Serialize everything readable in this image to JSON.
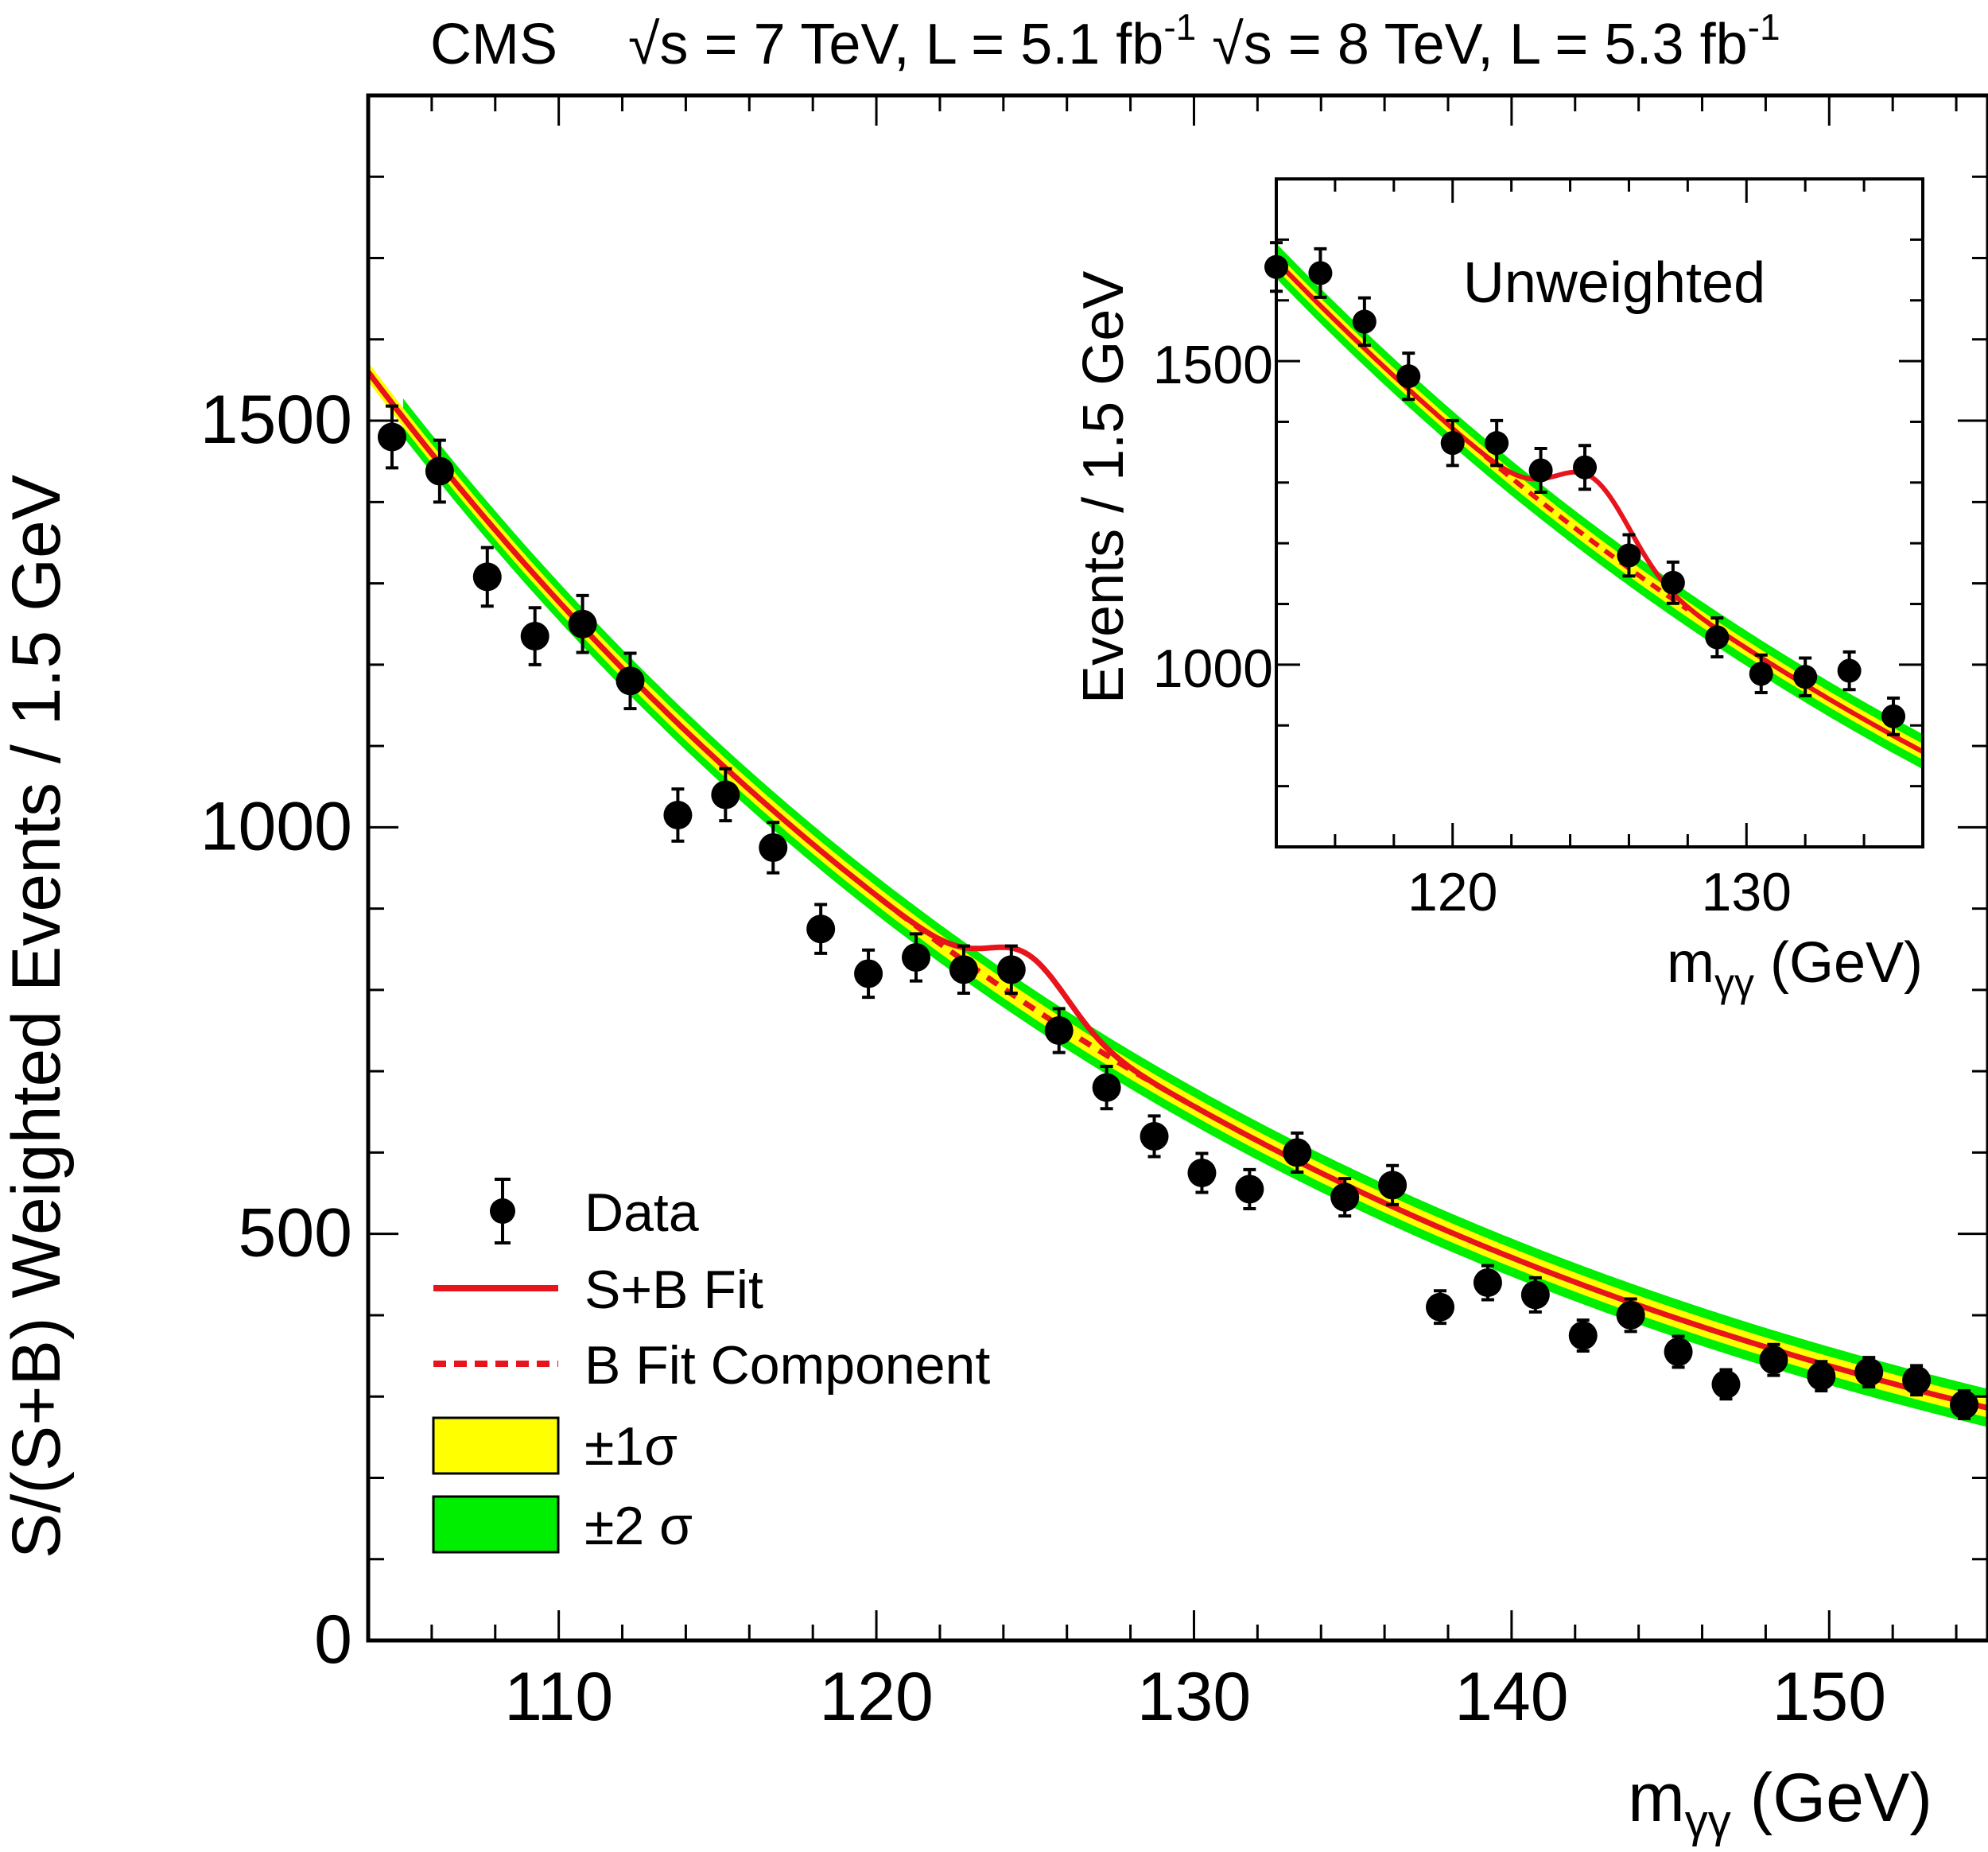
{
  "chart_data": [
    {
      "id": "main",
      "type": "scatter",
      "title": "CMS",
      "subtitle_parts": [
        "√s = 7 TeV, L = 5.1 fb",
        "-1",
        " √s = 8 TeV, L = 5.3 fb",
        "-1"
      ],
      "xlabel": {
        "main": "m",
        "sub": "γγ",
        "unit": " (GeV)"
      },
      "ylabel": "S/(S+B) Weighted Events / 1.5 GeV",
      "xlim": [
        104,
        155
      ],
      "ylim": [
        0,
        1900
      ],
      "x_ticks": [
        110,
        120,
        130,
        140,
        150
      ],
      "y_ticks": [
        0,
        500,
        1000,
        1500
      ],
      "x_minor_step": 2,
      "y_minor_step": 100,
      "series": [
        {
          "name": "Data",
          "type": "scatter-errorbars",
          "points": [
            {
              "x": 104.75,
              "y": 1480,
              "err": 38
            },
            {
              "x": 106.25,
              "y": 1438,
              "err": 38
            },
            {
              "x": 107.75,
              "y": 1308,
              "err": 36
            },
            {
              "x": 109.25,
              "y": 1235,
              "err": 35
            },
            {
              "x": 110.75,
              "y": 1250,
              "err": 35
            },
            {
              "x": 112.25,
              "y": 1180,
              "err": 34
            },
            {
              "x": 113.75,
              "y": 1015,
              "err": 32
            },
            {
              "x": 115.25,
              "y": 1040,
              "err": 32
            },
            {
              "x": 116.75,
              "y": 975,
              "err": 31
            },
            {
              "x": 118.25,
              "y": 875,
              "err": 30
            },
            {
              "x": 119.75,
              "y": 820,
              "err": 29
            },
            {
              "x": 121.25,
              "y": 840,
              "err": 29
            },
            {
              "x": 122.75,
              "y": 825,
              "err": 29
            },
            {
              "x": 124.25,
              "y": 825,
              "err": 29
            },
            {
              "x": 125.75,
              "y": 750,
              "err": 27
            },
            {
              "x": 127.25,
              "y": 680,
              "err": 26
            },
            {
              "x": 128.75,
              "y": 620,
              "err": 25
            },
            {
              "x": 130.25,
              "y": 575,
              "err": 24
            },
            {
              "x": 131.75,
              "y": 555,
              "err": 24
            },
            {
              "x": 133.25,
              "y": 600,
              "err": 24
            },
            {
              "x": 134.75,
              "y": 545,
              "err": 23
            },
            {
              "x": 136.25,
              "y": 560,
              "err": 24
            },
            {
              "x": 137.75,
              "y": 410,
              "err": 20
            },
            {
              "x": 139.25,
              "y": 440,
              "err": 21
            },
            {
              "x": 140.75,
              "y": 425,
              "err": 21
            },
            {
              "x": 142.25,
              "y": 375,
              "err": 19
            },
            {
              "x": 143.75,
              "y": 400,
              "err": 20
            },
            {
              "x": 145.25,
              "y": 355,
              "err": 19
            },
            {
              "x": 146.75,
              "y": 315,
              "err": 18
            },
            {
              "x": 148.25,
              "y": 345,
              "err": 19
            },
            {
              "x": 149.75,
              "y": 325,
              "err": 18
            },
            {
              "x": 151.25,
              "y": 330,
              "err": 18
            },
            {
              "x": 152.75,
              "y": 320,
              "err": 18
            },
            {
              "x": 154.25,
              "y": 290,
              "err": 17
            }
          ]
        },
        {
          "name": "S+B Fit",
          "type": "line",
          "color": "#e8141b",
          "background": {
            "A": 1560,
            "x0": 104,
            "k": 0.03327
          },
          "signal": {
            "amplitude": 62,
            "mean": 124.8,
            "sigma": 1.25
          }
        },
        {
          "name": "B Fit Component",
          "type": "dashed-line",
          "color": "#e8141b",
          "x_range": [
            120,
            130
          ]
        },
        {
          "name": "±1σ",
          "type": "band",
          "color": "#ffff00",
          "half_width": 12
        },
        {
          "name": "±2 σ",
          "type": "band",
          "color": "#00ee00",
          "half_width": 24,
          "x_start": 105
        }
      ],
      "legend": {
        "placement": "bottom-left",
        "entries": [
          "Data",
          "S+B Fit",
          "B Fit Component",
          "±1σ",
          "±2 σ"
        ]
      }
    },
    {
      "id": "inset",
      "type": "scatter",
      "title": "Unweighted",
      "xlabel": {
        "main": "m",
        "sub": "γγ",
        "unit": " (GeV)"
      },
      "ylabel": "Events / 1.5 GeV",
      "xlim": [
        114,
        136
      ],
      "ylim": [
        700,
        1800
      ],
      "x_ticks": [
        120,
        130
      ],
      "y_ticks": [
        1000,
        1500
      ],
      "x_minor_step": 2,
      "y_minor_step": 100,
      "series": [
        {
          "name": "Data",
          "type": "scatter-errorbars",
          "points": [
            {
              "x": 114.0,
              "y": 1655,
              "err": 40
            },
            {
              "x": 115.5,
              "y": 1645,
              "err": 40
            },
            {
              "x": 117.0,
              "y": 1565,
              "err": 39
            },
            {
              "x": 118.5,
              "y": 1475,
              "err": 38
            },
            {
              "x": 120.0,
              "y": 1365,
              "err": 37
            },
            {
              "x": 121.5,
              "y": 1365,
              "err": 37
            },
            {
              "x": 123.0,
              "y": 1320,
              "err": 36
            },
            {
              "x": 124.5,
              "y": 1325,
              "err": 36
            },
            {
              "x": 126.0,
              "y": 1180,
              "err": 34
            },
            {
              "x": 127.5,
              "y": 1135,
              "err": 34
            },
            {
              "x": 129.0,
              "y": 1045,
              "err": 32
            },
            {
              "x": 130.5,
              "y": 985,
              "err": 31
            },
            {
              "x": 132.0,
              "y": 980,
              "err": 31
            },
            {
              "x": 133.5,
              "y": 990,
              "err": 31
            },
            {
              "x": 135.0,
              "y": 915,
              "err": 30
            }
          ]
        },
        {
          "name": "S+B Fit",
          "type": "line",
          "color": "#e8141b",
          "background": {
            "A": 1665,
            "x0": 114,
            "k": 0.0302
          },
          "signal": {
            "amplitude": 105,
            "mean": 124.8,
            "sigma": 1.25
          }
        },
        {
          "name": "B Fit Component",
          "type": "dashed-line",
          "color": "#e8141b",
          "x_range": [
            121,
            128
          ]
        },
        {
          "name": "±1σ",
          "type": "band",
          "color": "#ffff00",
          "half_width": 10
        },
        {
          "name": "±2 σ",
          "type": "band",
          "color": "#00ee00",
          "half_width": 22
        }
      ]
    }
  ]
}
